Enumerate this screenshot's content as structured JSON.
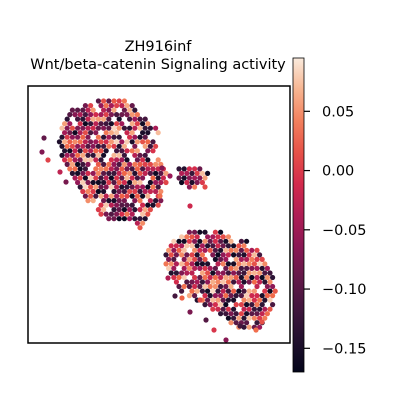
{
  "chart_data": {
    "type": "heatmap",
    "subtype": "spatial-hexbin-scatter",
    "title": "ZH916inf",
    "subtitle": "Wnt/beta-catenin Signaling activity",
    "xlabel": "",
    "ylabel": "",
    "axes_ticks_visible": false,
    "grid": false,
    "colormap": "rocket",
    "colorbar": {
      "placement": "right",
      "vmin": -0.17,
      "vmax": 0.095,
      "ticks": [
        0.05,
        0.0,
        -0.05,
        -0.1,
        -0.15
      ],
      "tick_labels": [
        "0.05",
        "0.00",
        "−0.05",
        "−0.10",
        "−0.15"
      ]
    },
    "clusters": [
      {
        "name": "upper-left tissue region",
        "value_range": [
          -0.17,
          0.09
        ]
      },
      {
        "name": "upper-right small fragment",
        "value_range": [
          -0.16,
          0.02
        ]
      },
      {
        "name": "lower-right tissue region",
        "value_range": [
          -0.17,
          0.09
        ]
      }
    ],
    "colors": {
      "low": "#03051a",
      "mid": "#c3245e",
      "high": "#faebdd"
    }
  }
}
